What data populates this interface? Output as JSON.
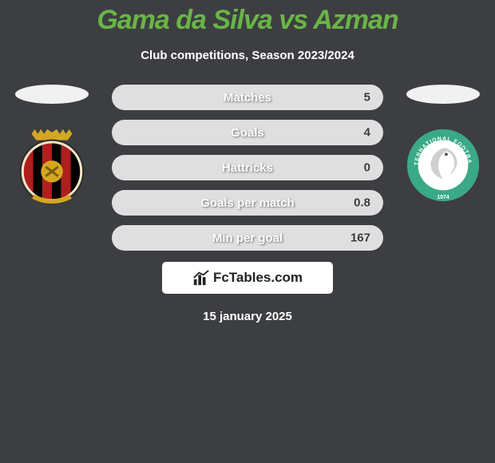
{
  "title": "Gama da Silva vs Azman",
  "subtitle": "Club competitions, Season 2023/2024",
  "date": "15 january 2025",
  "branding": {
    "site_name": "FcTables.com"
  },
  "colors": {
    "background": "#3d3e41",
    "accent_green": "#69b547",
    "bar_bg": "#dfdfdf",
    "bar_fill": "#69b547",
    "text_white": "#ffffff",
    "text_dark": "#3b3b3b"
  },
  "left_club": {
    "name": "club-left",
    "shield_bg": "#f2e6c6",
    "stripe_a": "#b01e1e",
    "stripe_b": "#000000",
    "crown": "#d4a723"
  },
  "right_club": {
    "name": "club-right",
    "ring_bg": "#3aa986",
    "inner_bg": "#ffffff",
    "bird": "#cfd0cf",
    "ring_text": "#ffffff"
  },
  "stats": [
    {
      "label": "Matches",
      "left_fill_pct": 0,
      "right_value": "5",
      "right_fill_pct": 0
    },
    {
      "label": "Goals",
      "left_fill_pct": 0,
      "right_value": "4",
      "right_fill_pct": 0
    },
    {
      "label": "Hattricks",
      "left_fill_pct": 0,
      "right_value": "0",
      "right_fill_pct": 0
    },
    {
      "label": "Goals per match",
      "left_fill_pct": 0,
      "right_value": "0.8",
      "right_fill_pct": 0
    },
    {
      "label": "Min per goal",
      "left_fill_pct": 0,
      "right_value": "167",
      "right_fill_pct": 0
    }
  ]
}
